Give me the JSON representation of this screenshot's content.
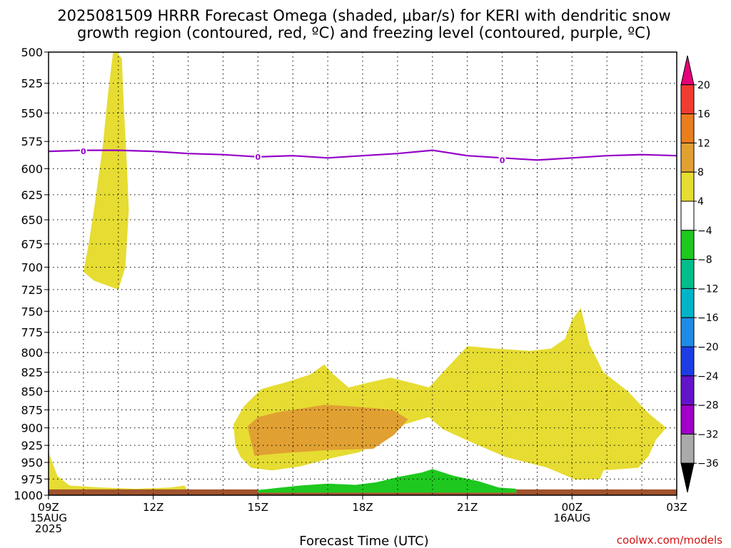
{
  "title": {
    "line1": "2025081509 HRRR Forecast Omega (shaded, μbar/s) for KERI with dendritic snow",
    "line2": "growth region (contoured, red, ºC) and freezing level (contoured, purple, ºC)"
  },
  "xlabel": "Forecast Time (UTC)",
  "credit": "coolwx.com/models",
  "colors": {
    "yellow": "#e6dc32",
    "orange": "#e1a032",
    "green": "#1ec81e",
    "ground": "#a0522d",
    "freezing": "#9400c8"
  },
  "chart_data": {
    "type": "time-height contour",
    "title": "2025081509 HRRR Forecast Omega (shaded, μbar/s) for KERI with dendritic snow growth region (contoured, red, ºC) and freezing level (contoured, purple, ºC)",
    "xlabel": "Forecast Time (UTC)",
    "ylabel": "",
    "x_hours": [
      9,
      10,
      11,
      12,
      13,
      14,
      15,
      16,
      17,
      18,
      19,
      20,
      21,
      22,
      23,
      24,
      25,
      26,
      27
    ],
    "x_ticks": [
      {
        "x": 9,
        "labels": [
          "09Z",
          "15AUG",
          "2025"
        ]
      },
      {
        "x": 12,
        "labels": [
          "12Z"
        ]
      },
      {
        "x": 15,
        "labels": [
          "15Z"
        ]
      },
      {
        "x": 18,
        "labels": [
          "18Z"
        ]
      },
      {
        "x": 21,
        "labels": [
          "21Z"
        ]
      },
      {
        "x": 24,
        "labels": [
          "00Z",
          "16AUG"
        ]
      },
      {
        "x": 27,
        "labels": [
          "03Z"
        ]
      }
    ],
    "y_ticks": [
      500,
      525,
      550,
      575,
      600,
      625,
      650,
      675,
      700,
      725,
      750,
      775,
      800,
      825,
      850,
      875,
      900,
      925,
      950,
      975,
      1000
    ],
    "ylim": [
      1000,
      500
    ],
    "xlim": [
      9,
      27
    ],
    "grid": true,
    "freezing_level": {
      "label": "0",
      "x": [
        9,
        10,
        11,
        12,
        13,
        14,
        15,
        16,
        17,
        18,
        19,
        20,
        21,
        22,
        23,
        24,
        25,
        26,
        27
      ],
      "y": [
        584,
        583,
        583,
        584,
        586,
        587,
        589,
        588,
        590,
        588,
        586,
        583,
        588,
        590,
        592,
        590,
        588,
        587,
        588
      ],
      "label_points": [
        {
          "x": 10,
          "y": 584
        },
        {
          "x": 15,
          "y": 589
        },
        {
          "x": 22,
          "y": 592
        }
      ]
    },
    "omega_regions": [
      {
        "bin": "4 to 8",
        "color": "#e6dc32",
        "points": [
          [
            10.0,
            705
          ],
          [
            10.15,
            675
          ],
          [
            10.3,
            640
          ],
          [
            10.55,
            580
          ],
          [
            10.7,
            535
          ],
          [
            10.85,
            500
          ],
          [
            10.95,
            485
          ],
          [
            11.1,
            505
          ],
          [
            11.15,
            540
          ],
          [
            11.25,
            600
          ],
          [
            11.3,
            640
          ],
          [
            11.25,
            670
          ],
          [
            11.2,
            700
          ],
          [
            11.0,
            725
          ],
          [
            10.3,
            715
          ]
        ]
      },
      {
        "bin": "4 to 8",
        "color": "#e6dc32",
        "points": [
          [
            9.0,
            935
          ],
          [
            9.25,
            970
          ],
          [
            9.6,
            985
          ],
          [
            10.5,
            988
          ],
          [
            11.5,
            990
          ],
          [
            12.5,
            988
          ],
          [
            12.9,
            985
          ],
          [
            13.0,
            996
          ],
          [
            11.0,
            997
          ],
          [
            9.0,
            997
          ]
        ]
      },
      {
        "bin": "4 to 8",
        "color": "#e6dc32",
        "points": [
          [
            14.3,
            895
          ],
          [
            14.6,
            870
          ],
          [
            15.1,
            847
          ],
          [
            15.8,
            838
          ],
          [
            16.5,
            828
          ],
          [
            16.9,
            815
          ],
          [
            17.1,
            825
          ],
          [
            17.6,
            845
          ],
          [
            18.2,
            838
          ],
          [
            18.8,
            832
          ],
          [
            19.5,
            840
          ],
          [
            19.9,
            845
          ],
          [
            20.3,
            825
          ],
          [
            21.0,
            792
          ],
          [
            21.8,
            795
          ],
          [
            22.8,
            798
          ],
          [
            23.4,
            795
          ],
          [
            23.8,
            783
          ],
          [
            24.0,
            760
          ],
          [
            24.25,
            746
          ],
          [
            24.5,
            790
          ],
          [
            24.9,
            825
          ],
          [
            25.6,
            850
          ],
          [
            26.2,
            880
          ],
          [
            26.7,
            900
          ],
          [
            26.4,
            917
          ],
          [
            26.2,
            940
          ],
          [
            25.9,
            958
          ],
          [
            24.9,
            962
          ],
          [
            24.8,
            975
          ],
          [
            24.1,
            976
          ],
          [
            23.3,
            958
          ],
          [
            22.1,
            942
          ],
          [
            21.0,
            918
          ],
          [
            20.3,
            902
          ],
          [
            19.9,
            885
          ],
          [
            19.2,
            895
          ],
          [
            18.6,
            918
          ],
          [
            17.9,
            935
          ],
          [
            17.0,
            945
          ],
          [
            16.2,
            956
          ],
          [
            15.4,
            962
          ],
          [
            14.8,
            958
          ],
          [
            14.5,
            942
          ],
          [
            14.35,
            925
          ]
        ]
      },
      {
        "bin": "8 to 12",
        "color": "#e1a032",
        "points": [
          [
            14.7,
            898
          ],
          [
            15.0,
            885
          ],
          [
            15.6,
            878
          ],
          [
            16.3,
            873
          ],
          [
            16.9,
            868
          ],
          [
            17.6,
            870
          ],
          [
            18.4,
            873
          ],
          [
            18.9,
            876
          ],
          [
            19.3,
            888
          ],
          [
            18.9,
            910
          ],
          [
            18.3,
            930
          ],
          [
            17.0,
            932
          ],
          [
            15.8,
            936
          ],
          [
            14.9,
            940
          ]
        ]
      },
      {
        "bin": "-8 to -4",
        "color": "#1ec81e",
        "points": [
          [
            15.0,
            992
          ],
          [
            16.2,
            985
          ],
          [
            17.0,
            982
          ],
          [
            17.8,
            984
          ],
          [
            18.4,
            980
          ],
          [
            19.0,
            972
          ],
          [
            19.7,
            965
          ],
          [
            20.0,
            960
          ],
          [
            20.6,
            970
          ],
          [
            21.3,
            978
          ],
          [
            21.9,
            988
          ],
          [
            22.4,
            990
          ],
          [
            22.4,
            996
          ],
          [
            15.0,
            996
          ]
        ]
      }
    ],
    "ground_bands": [
      {
        "x": [
          9.0,
          15.0
        ],
        "y_top": 991
      },
      {
        "x": [
          15.0,
          22.4
        ],
        "y_top": 996
      },
      {
        "x": [
          22.4,
          27.0
        ],
        "y_top": 991
      }
    ],
    "colorbar": {
      "labels": [
        "20",
        "16",
        "12",
        "8",
        "4",
        "-4",
        "-8",
        "-12",
        "-16",
        "-20",
        "-24",
        "-28",
        "-32",
        "-36"
      ],
      "bins": [
        {
          "range": "> 20",
          "color": "#e6007a"
        },
        {
          "range": "16 to 20",
          "color": "#f03c32"
        },
        {
          "range": "12 to 16",
          "color": "#eb7d1e"
        },
        {
          "range": "8 to 12",
          "color": "#e1a032"
        },
        {
          "range": "4 to 8",
          "color": "#e6dc32"
        },
        {
          "range": "-4 to 4",
          "color": "#ffffff"
        },
        {
          "range": "-8 to -4",
          "color": "#1ec81e"
        },
        {
          "range": "-12 to -8",
          "color": "#00be8c"
        },
        {
          "range": "-16 to -12",
          "color": "#00b4c8"
        },
        {
          "range": "-20 to -16",
          "color": "#1e8ce6"
        },
        {
          "range": "-24 to -20",
          "color": "#1e3ce6"
        },
        {
          "range": "-28 to -24",
          "color": "#6414c8"
        },
        {
          "range": "-32 to -28",
          "color": "#a000c8"
        },
        {
          "range": "-36 to -32",
          "color": "#aaaaaa"
        },
        {
          "range": "< -36",
          "color": "#000000"
        }
      ]
    }
  }
}
